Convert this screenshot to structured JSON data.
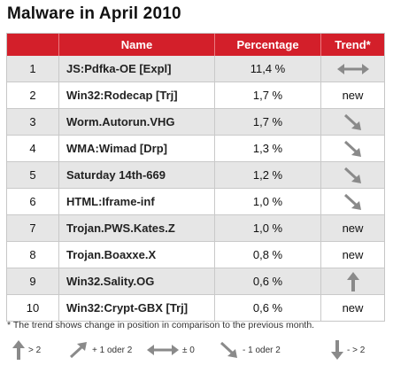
{
  "title": "Malware in April 2010",
  "headers": {
    "rank": "",
    "name": "Name",
    "percentage": "Percentage",
    "trend": "Trend*"
  },
  "rows": [
    {
      "rank": "1",
      "name": "JS:Pdfka-OE [Expl]",
      "percentage": "11,4 %",
      "trend": "same-icon"
    },
    {
      "rank": "2",
      "name": "Win32:Rodecap [Trj]",
      "percentage": "1,7 %",
      "trend": "new"
    },
    {
      "rank": "3",
      "name": "Worm.Autorun.VHG",
      "percentage": "1,7 %",
      "trend": "down-small-icon"
    },
    {
      "rank": "4",
      "name": "WMA:Wimad [Drp]",
      "percentage": "1,3 %",
      "trend": "down-small-icon"
    },
    {
      "rank": "5",
      "name": "Saturday 14th-669",
      "percentage": "1,2 %",
      "trend": "down-small-icon"
    },
    {
      "rank": "6",
      "name": "HTML:Iframe-inf",
      "percentage": "1,0 %",
      "trend": "down-small-icon"
    },
    {
      "rank": "7",
      "name": "Trojan.PWS.Kates.Z",
      "percentage": "1,0 %",
      "trend": "new"
    },
    {
      "rank": "8",
      "name": "Trojan.Boaxxe.X",
      "percentage": "0,8 %",
      "trend": "new"
    },
    {
      "rank": "9",
      "name": "Win32.Sality.OG",
      "percentage": "0,6 %",
      "trend": "up-large-icon"
    },
    {
      "rank": "10",
      "name": "Win32:Crypt-GBX [Trj]",
      "percentage": "0,6 %",
      "trend": "new"
    }
  ],
  "footnote": "* The trend shows change in position in comparison to the previous month.",
  "legend": [
    {
      "icon": "up-large-icon",
      "label": "> 2"
    },
    {
      "icon": "up-small-icon",
      "label": "+ 1 oder 2"
    },
    {
      "icon": "same-icon",
      "label": "± 0"
    },
    {
      "icon": "down-small-icon",
      "label": "- 1 oder 2"
    },
    {
      "icon": "down-large-icon",
      "label": "- > 2"
    }
  ],
  "colors": {
    "header_bg": "#d31f2a",
    "row_alt": "#e6e6e6",
    "arrow": "#8a8a8a"
  }
}
